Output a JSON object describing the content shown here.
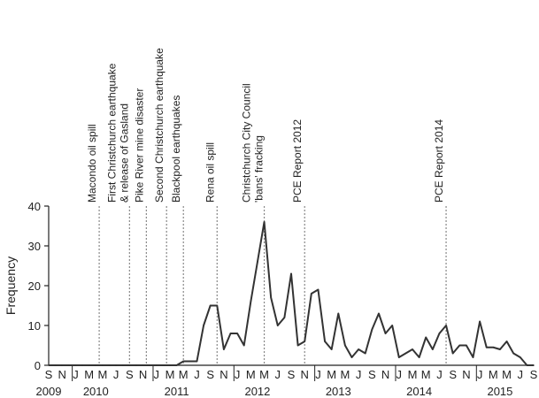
{
  "chart_data": {
    "type": "line",
    "title": "",
    "xlabel": "",
    "ylabel": "Frequency",
    "ylim": [
      0,
      40
    ],
    "yticks": [
      0,
      10,
      20,
      30,
      40
    ],
    "grid": false,
    "line_color": "#333333",
    "event_line_color": "#888888",
    "month_ticks": [
      "S",
      "N",
      "J",
      "M",
      "M",
      "J",
      "S",
      "N",
      "J",
      "M",
      "M",
      "J",
      "S",
      "N",
      "J",
      "M",
      "M",
      "J",
      "S",
      "N",
      "J",
      "M",
      "M",
      "J",
      "S",
      "N",
      "J",
      "M",
      "M",
      "J",
      "S",
      "N",
      "J",
      "M",
      "M",
      "J",
      "S"
    ],
    "year_labels": [
      {
        "label": "2009",
        "month_index": 0
      },
      {
        "label": "2010",
        "month_index": 7
      },
      {
        "label": "2011",
        "month_index": 19
      },
      {
        "label": "2012",
        "month_index": 31
      },
      {
        "label": "2013",
        "month_index": 43
      },
      {
        "label": "2014",
        "month_index": 55
      },
      {
        "label": "2015",
        "month_index": 67
      }
    ],
    "year_separators": [
      4,
      16,
      28,
      40,
      52,
      64
    ],
    "x_start": "2009-09",
    "x_end": "2015-09",
    "series": [
      {
        "values": [
          0,
          0,
          0,
          0,
          0,
          0,
          0,
          0,
          0,
          0,
          0,
          0,
          0,
          0,
          0,
          0,
          0,
          0,
          0,
          0,
          1,
          1,
          1,
          10,
          15,
          15,
          4,
          8,
          8,
          5,
          16,
          26,
          36,
          17,
          10,
          12,
          23,
          5,
          6,
          18,
          19,
          6,
          4,
          13,
          5,
          2,
          4,
          3,
          9,
          13,
          8,
          10,
          2,
          3,
          4,
          2,
          7,
          4,
          8,
          10,
          3,
          5,
          5,
          2,
          11,
          4.5,
          4.5,
          4,
          6,
          3,
          2,
          0,
          0
        ]
      }
    ],
    "events": [
      {
        "label": "Macondo oil spill",
        "month_index": 7.5
      },
      {
        "label": "First Christchurch earthquake",
        "month_index": 12,
        "label2": "& release of Gasland"
      },
      {
        "label": "Pike River mine disaster",
        "month_index": 14.5
      },
      {
        "label": "Second Christchurch earthquake",
        "month_index": 17.5
      },
      {
        "label": "Blackpool earthquakes",
        "month_index": 20
      },
      {
        "label": "Rena oil spill",
        "month_index": 25
      },
      {
        "label": "Christchurch City Council",
        "month_index": 32,
        "label2": "'bans' fracking"
      },
      {
        "label": "PCE Report 2012",
        "month_index": 38
      },
      {
        "label": "PCE Report 2014",
        "month_index": 59
      }
    ]
  }
}
